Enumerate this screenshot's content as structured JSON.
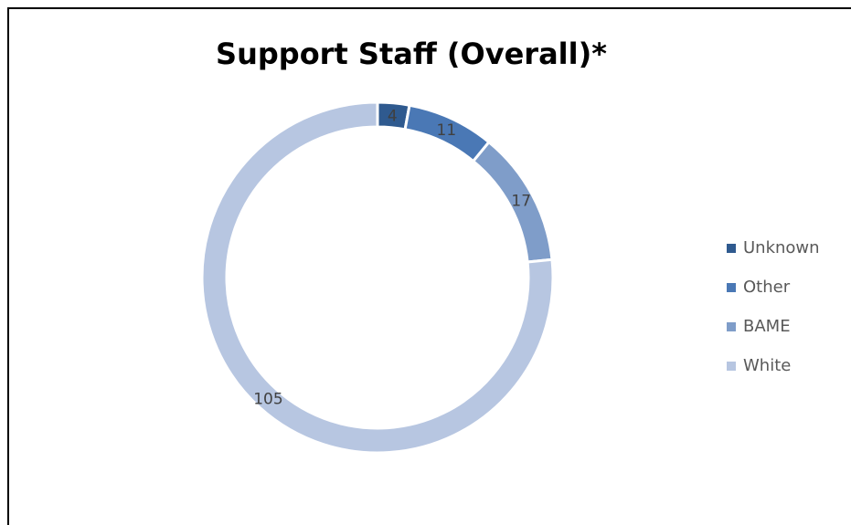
{
  "chart_data": {
    "type": "pie",
    "style": "donut",
    "title": "Support Staff (Overall)*",
    "slices": [
      {
        "label": "Unknown",
        "value": 4,
        "color": "#2F5A8F"
      },
      {
        "label": "Other",
        "value": 11,
        "color": "#4A78B5"
      },
      {
        "label": "BAME",
        "value": 17,
        "color": "#7F9DC9"
      },
      {
        "label": "White",
        "value": 105,
        "color": "#B7C6E1"
      }
    ],
    "legend_position": "right",
    "data_labels": true
  }
}
